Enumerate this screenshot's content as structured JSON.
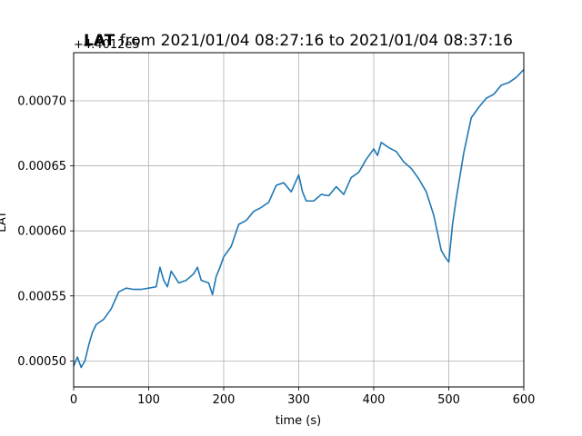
{
  "chart_data": {
    "type": "line",
    "title_bold": "LAT",
    "title_rest": " from 2021/01/04 08:27:16 to 2021/01/04 08:37:16",
    "xlabel": "time (s)",
    "ylabel": "LAT",
    "offset_text": "+4.4012e5",
    "xlim": [
      0,
      600
    ],
    "ylim": [
      0.00048,
      0.000737
    ],
    "x_ticks": [
      0,
      100,
      200,
      300,
      400,
      500,
      600
    ],
    "x_tick_labels": [
      "0",
      "100",
      "200",
      "300",
      "400",
      "500",
      "600"
    ],
    "y_ticks": [
      0.0005,
      0.00055,
      0.0006,
      0.00065,
      0.0007
    ],
    "y_tick_labels": [
      "0.00050",
      "0.00055",
      "0.00060",
      "0.00065",
      "0.00070"
    ],
    "grid": true,
    "line_color": "#1f77b4",
    "series": [
      {
        "x": [
          0,
          5,
          10,
          15,
          20,
          25,
          30,
          35,
          40,
          50,
          60,
          70,
          80,
          90,
          100,
          110,
          115,
          120,
          125,
          130,
          140,
          150,
          160,
          165,
          170,
          180,
          185,
          190,
          195,
          200,
          210,
          220,
          230,
          240,
          250,
          260,
          270,
          280,
          290,
          300,
          305,
          310,
          320,
          330,
          340,
          350,
          360,
          370,
          380,
          390,
          400,
          405,
          410,
          420,
          430,
          440,
          450,
          460,
          470,
          480,
          490,
          495,
          500,
          505,
          510,
          520,
          530,
          540,
          550,
          560,
          570,
          580,
          590,
          600
        ],
        "y": [
          0.000496,
          0.000503,
          0.000495,
          0.0005,
          0.000512,
          0.000522,
          0.000528,
          0.00053,
          0.000532,
          0.00054,
          0.000553,
          0.000556,
          0.000555,
          0.000555,
          0.000556,
          0.000557,
          0.000572,
          0.000562,
          0.000557,
          0.000569,
          0.00056,
          0.000562,
          0.000567,
          0.000572,
          0.000562,
          0.00056,
          0.000551,
          0.000565,
          0.000572,
          0.00058,
          0.000588,
          0.000605,
          0.000608,
          0.000615,
          0.000618,
          0.000622,
          0.000635,
          0.000637,
          0.00063,
          0.000643,
          0.00063,
          0.000623,
          0.000623,
          0.000628,
          0.000627,
          0.000634,
          0.000628,
          0.000641,
          0.000645,
          0.000655,
          0.000663,
          0.000658,
          0.000668,
          0.000664,
          0.000661,
          0.000653,
          0.000648,
          0.00064,
          0.00063,
          0.000612,
          0.000585,
          0.00058,
          0.000576,
          0.000605,
          0.000625,
          0.00066,
          0.000687,
          0.000695,
          0.000702,
          0.000705,
          0.000712,
          0.000714,
          0.000718,
          0.000724
        ]
      }
    ]
  }
}
